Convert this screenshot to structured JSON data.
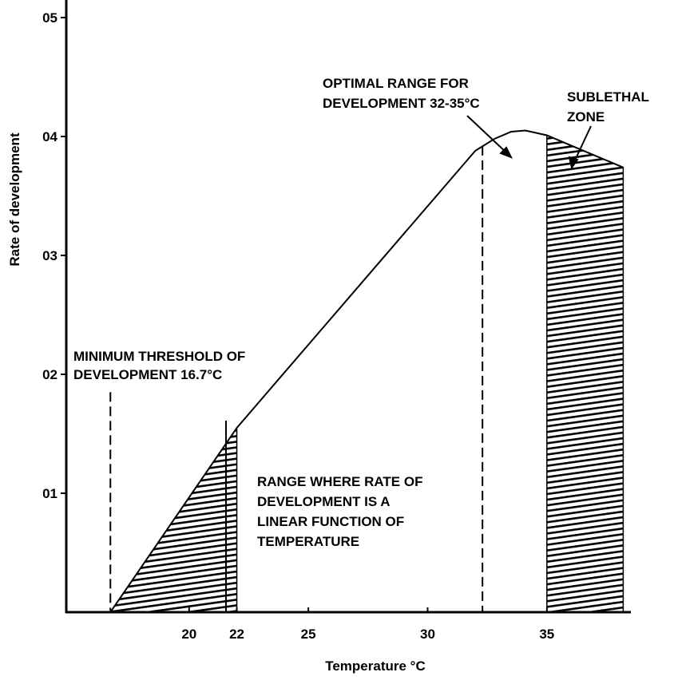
{
  "chart_data": {
    "type": "line",
    "title": "",
    "xlabel": "Temperature °C",
    "ylabel": "Rate of development",
    "xlim": [
      14.85,
      38.6
    ],
    "ylim": [
      0,
      0.05
    ],
    "x_ticks": [
      {
        "v": 20,
        "label": "20"
      },
      {
        "v": 22,
        "label": "22"
      },
      {
        "v": 25,
        "label": "25"
      },
      {
        "v": 30,
        "label": "30"
      },
      {
        "v": 35,
        "label": "35"
      }
    ],
    "y_ticks": [
      {
        "v": 0.01,
        "label": "01"
      },
      {
        "v": 0.02,
        "label": "02"
      },
      {
        "v": 0.03,
        "label": "03"
      },
      {
        "v": 0.04,
        "label": "04"
      },
      {
        "v": 0.05,
        "label": "05"
      }
    ],
    "grid": false,
    "series": [
      {
        "x": [
          16.7,
          22,
          32.0,
          32.8,
          33.5,
          34.1,
          35.0,
          36.3,
          38.2
        ],
        "y": [
          0,
          0.0155,
          0.0388,
          0.0398,
          0.0404,
          0.0405,
          0.0401,
          0.039,
          0.0374
        ],
        "color": "#000000"
      }
    ],
    "shaded_regions": [
      {
        "from": 16.7,
        "to": 22
      },
      {
        "from": 35,
        "to": 38.2
      }
    ],
    "dashed_lines": [
      {
        "x": 16.7,
        "y_top": 0.0185
      },
      {
        "x": 32.3,
        "y_top": 0.0392
      }
    ],
    "annotations": [
      {
        "id": "threshold",
        "lines": [
          "MINIMUM THRESHOLD OF",
          "DEVELOPMENT 16.7°C"
        ]
      },
      {
        "id": "linear",
        "lines": [
          "RANGE WHERE RATE OF",
          "DEVELOPMENT IS A",
          "LINEAR FUNCTION OF",
          "TEMPERATURE"
        ]
      },
      {
        "id": "optimal",
        "lines": [
          "OPTIMAL RANGE FOR",
          "DEVELOPMENT 32-35°C"
        ]
      },
      {
        "id": "sublethal",
        "lines": [
          "SUBLETHAL",
          "ZONE"
        ]
      }
    ]
  }
}
